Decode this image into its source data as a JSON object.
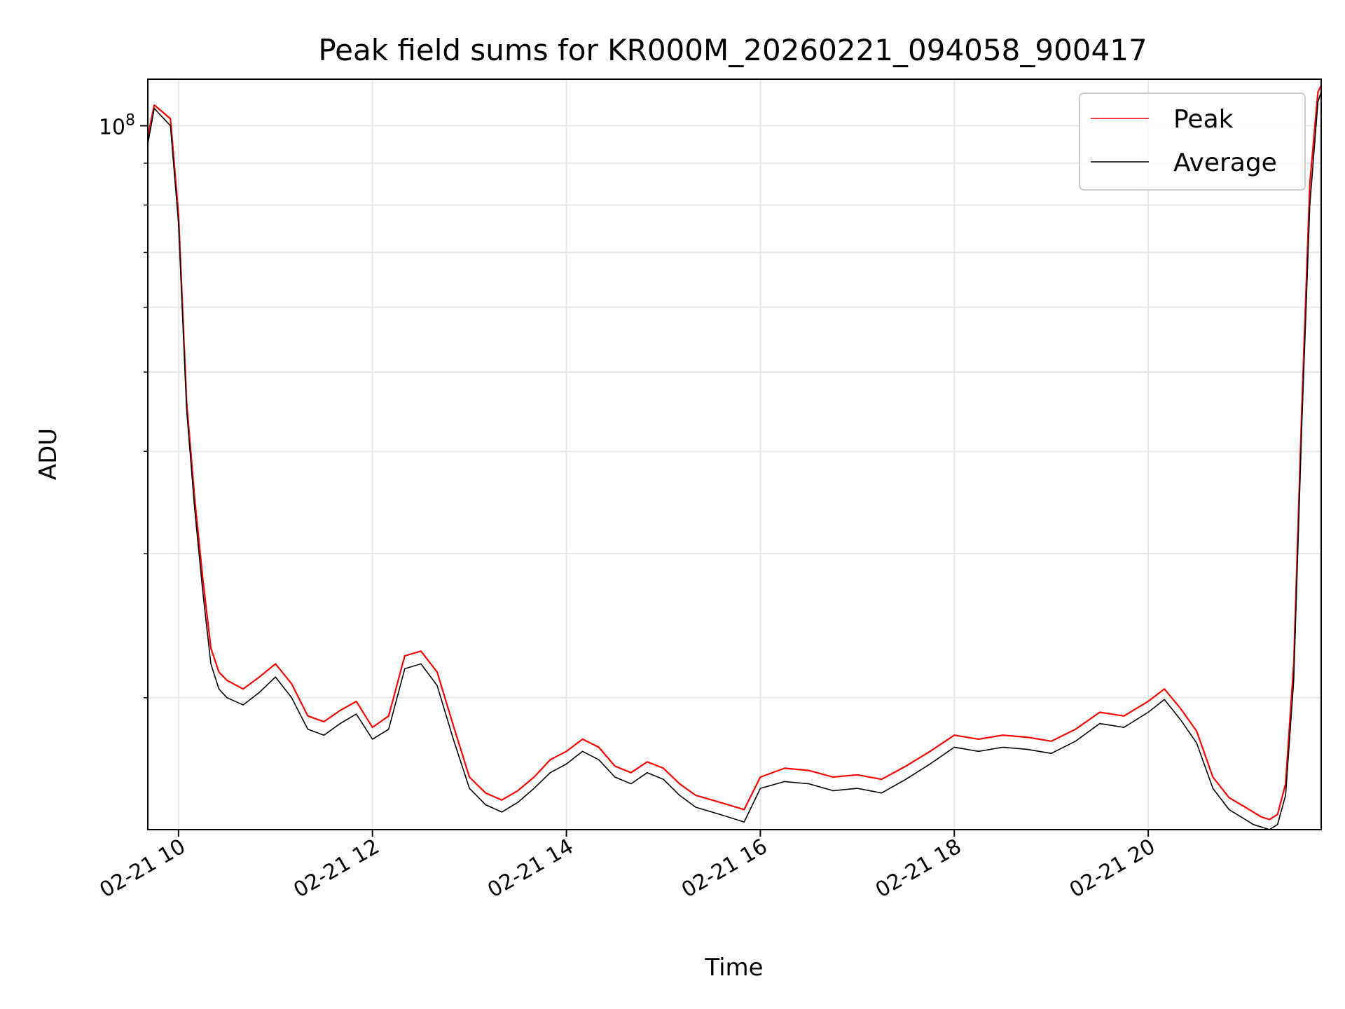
{
  "chart_data": {
    "type": "line",
    "title": "Peak field sums for KR000M_20260221_094058_900417",
    "xlabel": "Time",
    "ylabel": "ADU",
    "y_scale": "log",
    "xlim": [
      "2026-02-21 09:41",
      "2026-02-21 21:47"
    ],
    "ylim": [
      13800000,
      114000000
    ],
    "x_ticks": [
      {
        "value": "2026-02-21 10:00",
        "label": "02-21 10"
      },
      {
        "value": "2026-02-21 12:00",
        "label": "02-21 12"
      },
      {
        "value": "2026-02-21 14:00",
        "label": "02-21 14"
      },
      {
        "value": "2026-02-21 16:00",
        "label": "02-21 16"
      },
      {
        "value": "2026-02-21 18:00",
        "label": "02-21 18"
      },
      {
        "value": "2026-02-21 20:00",
        "label": "02-21 20"
      }
    ],
    "y_major_ticks": [
      {
        "value": 100000000,
        "label": "10",
        "exponent": "8"
      }
    ],
    "y_minor_ticks": [
      20000000,
      30000000,
      40000000,
      50000000,
      60000000,
      70000000,
      80000000,
      90000000
    ],
    "grid": true,
    "legend_position": "top-right",
    "series": [
      {
        "name": "Peak",
        "color": "#ff0000",
        "x": [
          "2026-02-21 09:41",
          "2026-02-21 09:45",
          "2026-02-21 09:55",
          "2026-02-21 10:00",
          "2026-02-21 10:05",
          "2026-02-21 10:10",
          "2026-02-21 10:15",
          "2026-02-21 10:20",
          "2026-02-21 10:25",
          "2026-02-21 10:30",
          "2026-02-21 10:40",
          "2026-02-21 10:50",
          "2026-02-21 11:00",
          "2026-02-21 11:10",
          "2026-02-21 11:20",
          "2026-02-21 11:30",
          "2026-02-21 11:40",
          "2026-02-21 11:50",
          "2026-02-21 12:00",
          "2026-02-21 12:10",
          "2026-02-21 12:20",
          "2026-02-21 12:30",
          "2026-02-21 12:40",
          "2026-02-21 12:50",
          "2026-02-21 13:00",
          "2026-02-21 13:10",
          "2026-02-21 13:20",
          "2026-02-21 13:30",
          "2026-02-21 13:40",
          "2026-02-21 13:50",
          "2026-02-21 14:00",
          "2026-02-21 14:10",
          "2026-02-21 14:20",
          "2026-02-21 14:30",
          "2026-02-21 14:40",
          "2026-02-21 14:50",
          "2026-02-21 15:00",
          "2026-02-21 15:10",
          "2026-02-21 15:20",
          "2026-02-21 15:30",
          "2026-02-21 15:40",
          "2026-02-21 15:50",
          "2026-02-21 16:00",
          "2026-02-21 16:15",
          "2026-02-21 16:30",
          "2026-02-21 16:45",
          "2026-02-21 17:00",
          "2026-02-21 17:15",
          "2026-02-21 17:30",
          "2026-02-21 17:45",
          "2026-02-21 18:00",
          "2026-02-21 18:15",
          "2026-02-21 18:30",
          "2026-02-21 18:45",
          "2026-02-21 19:00",
          "2026-02-21 19:15",
          "2026-02-21 19:30",
          "2026-02-21 19:45",
          "2026-02-21 20:00",
          "2026-02-21 20:10",
          "2026-02-21 20:20",
          "2026-02-21 20:30",
          "2026-02-21 20:40",
          "2026-02-21 20:50",
          "2026-02-21 21:00",
          "2026-02-21 21:05",
          "2026-02-21 21:10",
          "2026-02-21 21:15",
          "2026-02-21 21:20",
          "2026-02-21 21:25",
          "2026-02-21 21:30",
          "2026-02-21 21:35",
          "2026-02-21 21:40",
          "2026-02-21 21:45",
          "2026-02-21 21:47"
        ],
        "y": [
          97000000,
          106000000,
          102000000,
          78000000,
          46000000,
          35000000,
          28000000,
          23000000,
          21500000,
          21000000,
          20500000,
          21200000,
          22000000,
          20800000,
          19000000,
          18700000,
          19300000,
          19800000,
          18400000,
          19000000,
          22500000,
          22800000,
          21500000,
          18500000,
          16000000,
          15300000,
          15000000,
          15400000,
          16000000,
          16800000,
          17200000,
          17800000,
          17400000,
          16500000,
          16200000,
          16700000,
          16400000,
          15700000,
          15200000,
          15000000,
          14800000,
          14600000,
          16000000,
          16400000,
          16300000,
          16000000,
          16100000,
          15900000,
          16500000,
          17200000,
          18000000,
          17800000,
          18000000,
          17900000,
          17700000,
          18300000,
          19200000,
          19000000,
          19800000,
          20500000,
          19400000,
          18200000,
          16000000,
          15100000,
          14700000,
          14500000,
          14300000,
          14200000,
          14400000,
          15700000,
          22000000,
          45000000,
          85000000,
          110000000,
          112000000
        ]
      },
      {
        "name": "Average",
        "color": "#000000",
        "x": [
          "2026-02-21 09:41",
          "2026-02-21 09:45",
          "2026-02-21 09:55",
          "2026-02-21 10:00",
          "2026-02-21 10:05",
          "2026-02-21 10:10",
          "2026-02-21 10:15",
          "2026-02-21 10:20",
          "2026-02-21 10:25",
          "2026-02-21 10:30",
          "2026-02-21 10:40",
          "2026-02-21 10:50",
          "2026-02-21 11:00",
          "2026-02-21 11:10",
          "2026-02-21 11:20",
          "2026-02-21 11:30",
          "2026-02-21 11:40",
          "2026-02-21 11:50",
          "2026-02-21 12:00",
          "2026-02-21 12:10",
          "2026-02-21 12:20",
          "2026-02-21 12:30",
          "2026-02-21 12:40",
          "2026-02-21 12:50",
          "2026-02-21 13:00",
          "2026-02-21 13:10",
          "2026-02-21 13:20",
          "2026-02-21 13:30",
          "2026-02-21 13:40",
          "2026-02-21 13:50",
          "2026-02-21 14:00",
          "2026-02-21 14:10",
          "2026-02-21 14:20",
          "2026-02-21 14:30",
          "2026-02-21 14:40",
          "2026-02-21 14:50",
          "2026-02-21 15:00",
          "2026-02-21 15:10",
          "2026-02-21 15:20",
          "2026-02-21 15:30",
          "2026-02-21 15:40",
          "2026-02-21 15:50",
          "2026-02-21 16:00",
          "2026-02-21 16:15",
          "2026-02-21 16:30",
          "2026-02-21 16:45",
          "2026-02-21 17:00",
          "2026-02-21 17:15",
          "2026-02-21 17:30",
          "2026-02-21 17:45",
          "2026-02-21 18:00",
          "2026-02-21 18:15",
          "2026-02-21 18:30",
          "2026-02-21 18:45",
          "2026-02-21 19:00",
          "2026-02-21 19:15",
          "2026-02-21 19:30",
          "2026-02-21 19:45",
          "2026-02-21 20:00",
          "2026-02-21 20:10",
          "2026-02-21 20:20",
          "2026-02-21 20:30",
          "2026-02-21 20:40",
          "2026-02-21 20:50",
          "2026-02-21 21:00",
          "2026-02-21 21:05",
          "2026-02-21 21:10",
          "2026-02-21 21:15",
          "2026-02-21 21:20",
          "2026-02-21 21:25",
          "2026-02-21 21:30",
          "2026-02-21 21:35",
          "2026-02-21 21:40",
          "2026-02-21 21:45",
          "2026-02-21 21:47"
        ],
        "y": [
          95000000,
          105000000,
          100000000,
          76000000,
          45000000,
          34000000,
          27000000,
          22000000,
          20500000,
          20000000,
          19600000,
          20300000,
          21200000,
          20000000,
          18300000,
          18000000,
          18600000,
          19100000,
          17800000,
          18300000,
          21700000,
          22000000,
          20700000,
          17800000,
          15500000,
          14800000,
          14500000,
          14900000,
          15500000,
          16200000,
          16600000,
          17200000,
          16800000,
          16000000,
          15700000,
          16200000,
          15900000,
          15200000,
          14700000,
          14500000,
          14300000,
          14100000,
          15500000,
          15800000,
          15700000,
          15400000,
          15500000,
          15300000,
          15900000,
          16600000,
          17400000,
          17200000,
          17400000,
          17300000,
          17100000,
          17700000,
          18600000,
          18400000,
          19200000,
          19900000,
          18800000,
          17600000,
          15500000,
          14600000,
          14200000,
          14000000,
          13900000,
          13800000,
          14000000,
          15200000,
          21000000,
          43000000,
          80000000,
          107000000,
          110000000
        ]
      }
    ]
  }
}
